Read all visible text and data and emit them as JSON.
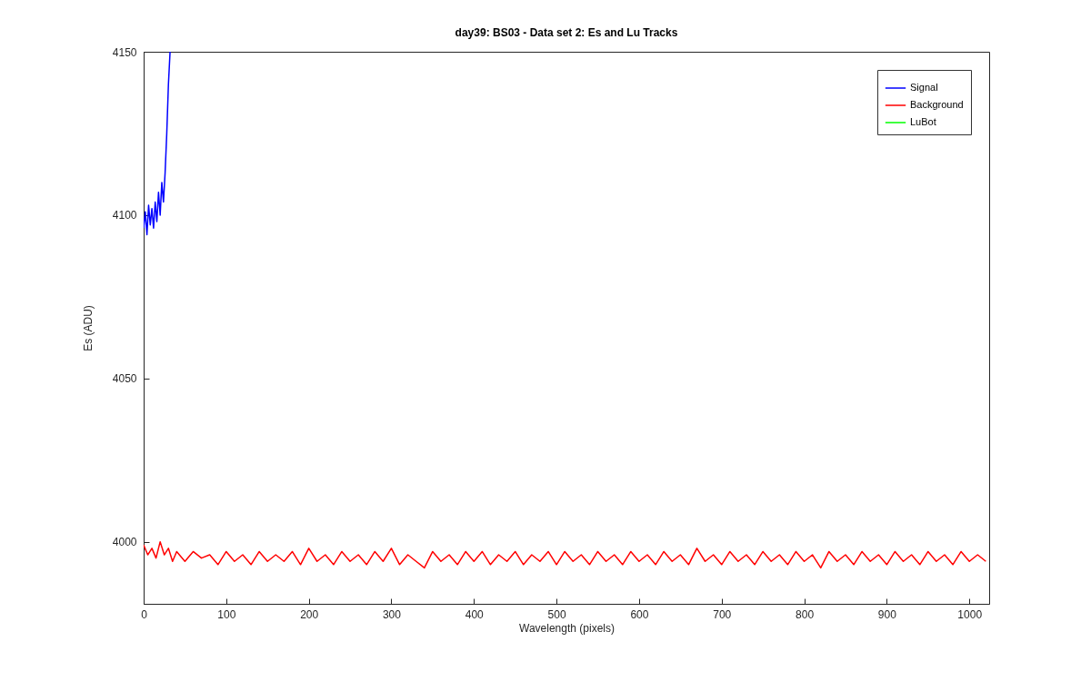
{
  "chart_data": {
    "type": "line",
    "title": "day39: BS03 - Data set 2: Es and Lu Tracks",
    "xlabel": "Wavelength (pixels)",
    "ylabel": "Es (ADU)",
    "xlim": [
      0,
      1024
    ],
    "ylim": [
      3981,
      4150
    ],
    "xticks": [
      0,
      100,
      200,
      300,
      400,
      500,
      600,
      700,
      800,
      900,
      1000
    ],
    "yticks": [
      4000,
      4050,
      4100,
      4150
    ],
    "legend": "top right",
    "series": [
      {
        "name": "Signal",
        "color": "#0000ff",
        "x": [
          0,
          2,
          4,
          6,
          8,
          10,
          12,
          14,
          16,
          18,
          20,
          22,
          24,
          26,
          28,
          30,
          32
        ],
        "values": [
          4096,
          4101,
          4094,
          4103,
          4097,
          4102,
          4096,
          4104,
          4098,
          4107,
          4100,
          4110,
          4104,
          4113,
          4125,
          4140,
          4150
        ]
      },
      {
        "name": "Background",
        "color": "#ff0000",
        "x": [
          0,
          5,
          10,
          15,
          20,
          25,
          30,
          35,
          40,
          50,
          60,
          70,
          80,
          90,
          100,
          110,
          120,
          130,
          140,
          150,
          160,
          170,
          180,
          190,
          200,
          210,
          220,
          230,
          240,
          250,
          260,
          270,
          280,
          290,
          300,
          310,
          320,
          330,
          340,
          350,
          360,
          370,
          380,
          390,
          400,
          410,
          420,
          430,
          440,
          450,
          460,
          470,
          480,
          490,
          500,
          510,
          520,
          530,
          540,
          550,
          560,
          570,
          580,
          590,
          600,
          610,
          620,
          630,
          640,
          650,
          660,
          670,
          680,
          690,
          700,
          710,
          720,
          730,
          740,
          750,
          760,
          770,
          780,
          790,
          800,
          810,
          820,
          830,
          840,
          850,
          860,
          870,
          880,
          890,
          900,
          910,
          920,
          930,
          940,
          950,
          960,
          970,
          980,
          990,
          1000,
          1010,
          1020
        ],
        "values": [
          3999,
          3996,
          3998,
          3995,
          4000,
          3996,
          3998,
          3994,
          3997,
          3994,
          3997,
          3995,
          3996,
          3993,
          3997,
          3994,
          3996,
          3993,
          3997,
          3994,
          3996,
          3994,
          3997,
          3993,
          3998,
          3994,
          3996,
          3993,
          3997,
          3994,
          3996,
          3993,
          3997,
          3994,
          3998,
          3993,
          3996,
          3994,
          3992,
          3997,
          3994,
          3996,
          3993,
          3997,
          3994,
          3997,
          3993,
          3996,
          3994,
          3997,
          3993,
          3996,
          3994,
          3997,
          3993,
          3997,
          3994,
          3996,
          3993,
          3997,
          3994,
          3996,
          3993,
          3997,
          3994,
          3996,
          3993,
          3997,
          3994,
          3996,
          3993,
          3998,
          3994,
          3996,
          3993,
          3997,
          3994,
          3996,
          3993,
          3997,
          3994,
          3996,
          3993,
          3997,
          3994,
          3996,
          3992,
          3997,
          3994,
          3996,
          3993,
          3997,
          3994,
          3996,
          3993,
          3997,
          3994,
          3996,
          3993,
          3997,
          3994,
          3996,
          3993,
          3997,
          3994,
          3996,
          3994
        ]
      },
      {
        "name": "LuBot",
        "color": "#00ff00"
      }
    ]
  }
}
